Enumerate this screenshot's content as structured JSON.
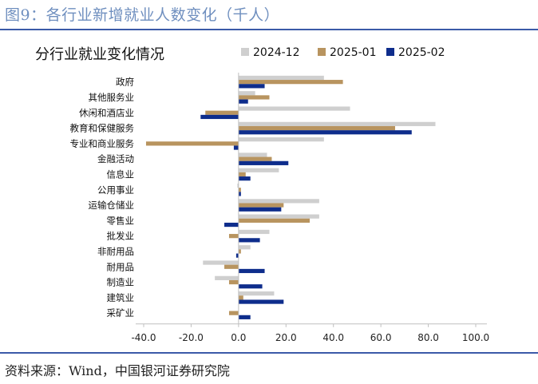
{
  "figure": {
    "title": "图9：各行业新增就业人数变化（千人）",
    "source": "资料来源：Wind，中国银河证券研究院"
  },
  "chart_data": {
    "type": "bar",
    "orientation": "horizontal",
    "title": "分行业就业变化情况",
    "xlabel": "",
    "ylabel": "",
    "xlim": [
      -40,
      100
    ],
    "xticks": [
      -40,
      -20,
      0,
      20,
      40,
      60,
      80,
      100
    ],
    "xtick_labels": [
      "-40.0",
      "-20.0",
      "0.0",
      "20.0",
      "40.0",
      "60.0",
      "80.0",
      "100.0"
    ],
    "legend_position": "top-right",
    "grid": false,
    "categories": [
      "政府",
      "其他服务业",
      "休闲和酒店业",
      "教育和保健服务",
      "专业和商业服务",
      "金融活动",
      "信息业",
      "公用事业",
      "运输仓储业",
      "零售业",
      "批发业",
      "非耐用品",
      "耐用品",
      "制造业",
      "建筑业",
      "采矿业"
    ],
    "series": [
      {
        "name": "2024-12",
        "color": "#cfcfcf",
        "values": [
          36,
          7,
          47,
          83,
          36,
          12,
          17,
          -0.5,
          34,
          34,
          13,
          5,
          -15,
          -10,
          15,
          0
        ]
      },
      {
        "name": "2025-01",
        "color": "#b8945f",
        "values": [
          44,
          13,
          -14,
          66,
          -39,
          14,
          3,
          1,
          19,
          30,
          -4,
          1,
          -6,
          -4,
          2,
          -4
        ]
      },
      {
        "name": "2025-02",
        "color": "#0e2d8c",
        "values": [
          11,
          4,
          -16,
          73,
          -2,
          21,
          5,
          1,
          18,
          -6,
          9,
          -1,
          11,
          10,
          19,
          5
        ]
      }
    ]
  }
}
